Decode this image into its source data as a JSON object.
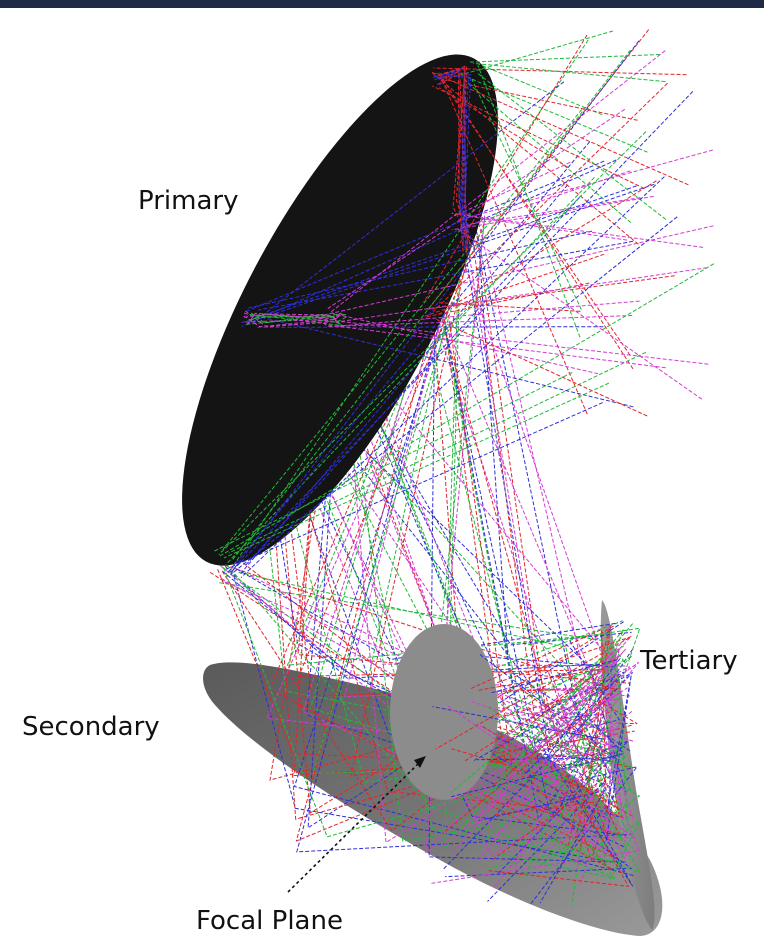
{
  "labels": {
    "primary": "Primary",
    "secondary": "Secondary",
    "tertiary": "Tertiary",
    "focal_plane": "Focal Plane"
  },
  "colors": {
    "primary_mirror": "#141414",
    "secondary_mirror": "#6f6f6f",
    "tertiary_mirror": "#8a8a8a",
    "focal_plane": "#8c8c8c",
    "ray_red": "#e0262a",
    "ray_green": "#21b83a",
    "ray_blue": "#2f2fd8",
    "ray_magenta": "#d43bd4",
    "top_bar": "#1f2a44"
  }
}
